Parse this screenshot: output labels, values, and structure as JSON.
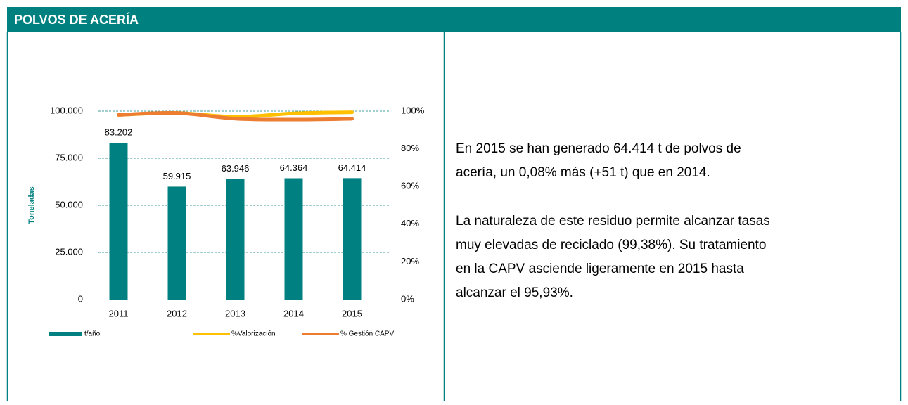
{
  "header": {
    "title": "POLVOS DE ACERÍA"
  },
  "chart_data": {
    "type": "bar-line",
    "y_label": "Toneladas",
    "categories": [
      "2011",
      "2012",
      "2013",
      "2014",
      "2015"
    ],
    "series": [
      {
        "name": "t/año",
        "color": "#008080",
        "type": "bar",
        "values": [
          83202,
          59915,
          63946,
          64364,
          64414
        ],
        "value_labels": [
          "83.202",
          "59.915",
          "63.946",
          "64.364",
          "64.414"
        ]
      },
      {
        "name": "%Valorización",
        "color": "#ffc000",
        "type": "line",
        "axis": "y2",
        "values": [
          98,
          99,
          97,
          98.8,
          99.38
        ]
      },
      {
        "name": "% Gestión CAPV",
        "color": "#ed7d31",
        "type": "line",
        "axis": "y2",
        "values": [
          98,
          99,
          96,
          95.5,
          95.93
        ]
      }
    ],
    "ylim": [
      0,
      100000
    ],
    "yticks": [
      0,
      {
        "value": 25000,
        "label": "25.000"
      },
      {
        "value": 50000,
        "label": "50.000"
      },
      {
        "value": 75000,
        "label": "75.000"
      },
      {
        "value": 100000,
        "label": "100.000"
      }
    ],
    "y2lim": [
      0,
      100
    ],
    "y2ticks": [
      {
        "value": 0,
        "label": "0%"
      },
      {
        "value": 20,
        "label": "20%"
      },
      {
        "value": 40,
        "label": "40%"
      },
      {
        "value": 60,
        "label": "60%"
      },
      {
        "value": 80,
        "label": "80%"
      },
      {
        "value": 100,
        "label": "100%"
      }
    ],
    "grid": true,
    "legend": "bottom"
  },
  "text": {
    "paragraphs": [
      [
        "En 2015 se han generado 64.414 t de polvos de",
        "acería, un 0,08% más (+51 t) que en 2014."
      ],
      [
        "La naturaleza de este residuo permite alcanzar tasas",
        "muy elevadas de reciclado (99,38%). Su tratamiento",
        "en la CAPV asciende ligeramente en 2015 hasta",
        "alcanzar el 95,93%."
      ]
    ]
  }
}
